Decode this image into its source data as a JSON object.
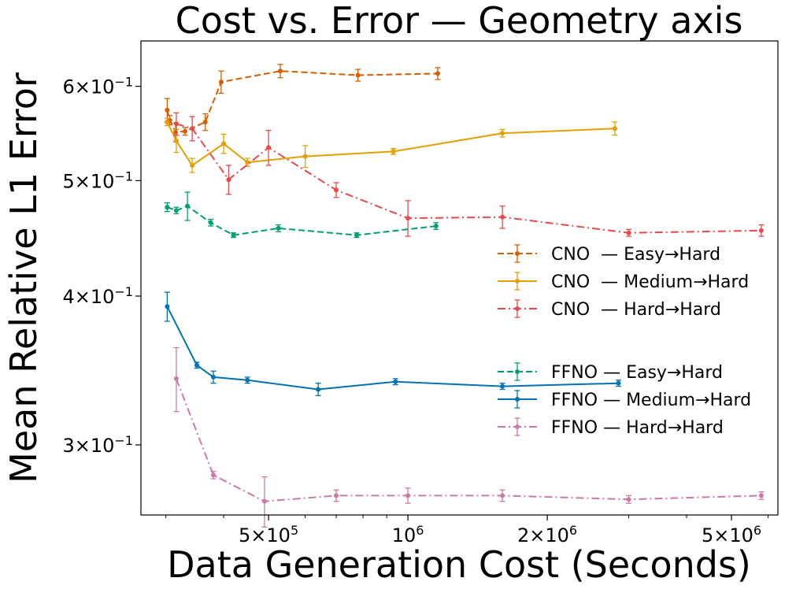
{
  "chart_data": {
    "type": "line",
    "title": "Cost vs. Error — Geometry axis",
    "xlabel": "Data Generation Cost (Seconds)",
    "ylabel": "Mean Relative L1 Error",
    "xscale": "log",
    "yscale": "log",
    "xlim": [
      265000,
      6300000
    ],
    "ylim": [
      0.262,
      0.655
    ],
    "x_ticks": [
      {
        "value": 500000,
        "mant": "5×10",
        "exp": "5"
      },
      {
        "value": 1000000,
        "mant": "10",
        "exp": "6"
      },
      {
        "value": 2000000,
        "mant": "2×10",
        "exp": "6"
      },
      {
        "value": 5000000,
        "mant": "5×10",
        "exp": "6"
      }
    ],
    "y_ticks": [
      {
        "value": 0.3,
        "mant": "3×10",
        "exp": "−1"
      },
      {
        "value": 0.4,
        "mant": "4×10",
        "exp": "−1"
      },
      {
        "value": 0.5,
        "mant": "5×10",
        "exp": "−1"
      },
      {
        "value": 0.6,
        "mant": "6×10",
        "exp": "−1"
      }
    ],
    "legend_groups": [
      {
        "placement": "right-middle",
        "series": [
          0,
          1,
          2
        ]
      },
      {
        "placement": "right-lower",
        "series": [
          3,
          4,
          5
        ]
      }
    ],
    "series": [
      {
        "name": "CNO  — Easy→Hard",
        "color": "#d55e00",
        "dash": "dashed",
        "x": [
          302000,
          306000,
          315000,
          330000,
          365000,
          395000,
          530000,
          780000,
          1160000
        ],
        "y": [
          0.573,
          0.562,
          0.549,
          0.55,
          0.56,
          0.605,
          0.618,
          0.613,
          0.615
        ],
        "err": [
          0.013,
          0.005,
          0.01,
          0.004,
          0.009,
          0.013,
          0.008,
          0.007,
          0.007
        ]
      },
      {
        "name": "CNO  — Medium→Hard",
        "color": "#e69f00",
        "dash": "solid",
        "x": [
          302000,
          316000,
          342000,
          400000,
          450000,
          600000,
          930000,
          1600000,
          2800000
        ],
        "y": [
          0.56,
          0.54,
          0.515,
          0.537,
          0.518,
          0.524,
          0.529,
          0.548,
          0.553
        ],
        "err": [
          0.004,
          0.012,
          0.007,
          0.01,
          0.004,
          0.011,
          0.003,
          0.004,
          0.007
        ]
      },
      {
        "name": "CNO  — Hard→Hard",
        "color": "#e84a4a",
        "dash": "dashdot",
        "x": [
          316000,
          342000,
          410000,
          500000,
          700000,
          1000000,
          1600000,
          3000000,
          5800000
        ],
        "y": [
          0.558,
          0.553,
          0.501,
          0.533,
          0.491,
          0.465,
          0.466,
          0.452,
          0.454
        ],
        "err": [
          0.012,
          0.013,
          0.014,
          0.018,
          0.007,
          0.016,
          0.01,
          0.003,
          0.005
        ]
      },
      {
        "name": "FFNO — Easy→Hard",
        "color": "#009e73",
        "dash": "dashed",
        "x": [
          302000,
          316000,
          334000,
          375000,
          420000,
          525000,
          775000,
          1150000
        ],
        "y": [
          0.475,
          0.472,
          0.476,
          0.461,
          0.45,
          0.456,
          0.45,
          0.458
        ],
        "err": [
          0.004,
          0.003,
          0.013,
          0.003,
          0.002,
          0.003,
          0.002,
          0.003
        ]
      },
      {
        "name": "FFNO — Medium→Hard",
        "color": "#0072b2",
        "dash": "solid",
        "x": [
          302000,
          350000,
          380000,
          450000,
          640000,
          940000,
          1600000,
          2850000
        ],
        "y": [
          0.392,
          0.35,
          0.342,
          0.34,
          0.334,
          0.339,
          0.336,
          0.338
        ],
        "err": [
          0.011,
          0.002,
          0.004,
          0.002,
          0.004,
          0.002,
          0.002,
          0.002
        ]
      },
      {
        "name": "FFNO — Hard→Hard",
        "color": "#cc79a7",
        "dash": "dashdot",
        "x": [
          316000,
          380000,
          490000,
          700000,
          1000000,
          1600000,
          3000000,
          5800000
        ],
        "y": [
          0.341,
          0.283,
          0.269,
          0.272,
          0.272,
          0.272,
          0.27,
          0.272
        ],
        "err": [
          0.021,
          0.002,
          0.013,
          0.003,
          0.004,
          0.003,
          0.002,
          0.002
        ]
      }
    ]
  }
}
